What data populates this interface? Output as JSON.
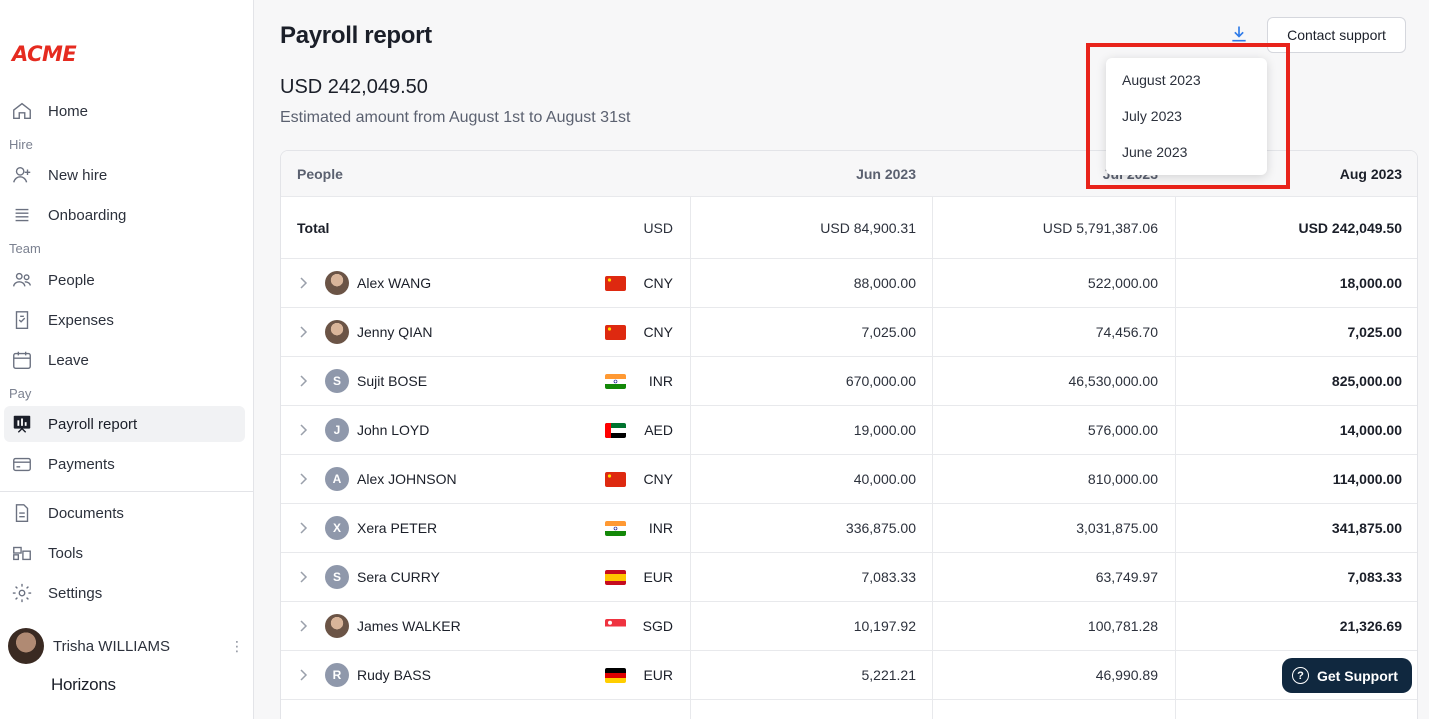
{
  "sidebar": {
    "logo": "ACME",
    "sections": {
      "hire": "Hire",
      "team": "Team",
      "pay": "Pay"
    },
    "items": {
      "home": "Home",
      "new_hire": "New hire",
      "onboarding": "Onboarding",
      "people": "People",
      "expenses": "Expenses",
      "leave": "Leave",
      "payroll_report": "Payroll report",
      "payments": "Payments",
      "documents": "Documents",
      "tools": "Tools",
      "settings": "Settings"
    },
    "user_name": "Trisha WILLIAMS",
    "kebab_glyph": "⋮",
    "brand": "Horizons"
  },
  "header": {
    "title": "Payroll report",
    "amount": "USD 242,049.50",
    "subtitle": "Estimated amount from August 1st to August 31st",
    "contact_button": "Contact support"
  },
  "dropdown": {
    "options": [
      "August 2023",
      "July 2023",
      "June 2023"
    ]
  },
  "table": {
    "headers": {
      "people": "People",
      "col1": "Jun 2023",
      "col2": "Jul 2023",
      "col3": "Aug 2023"
    },
    "total": {
      "label": "Total",
      "currency": "USD",
      "col1": "USD 84,900.31",
      "col2": "USD 5,791,387.06",
      "col3": "USD 242,049.50"
    },
    "rows": [
      {
        "initial": "",
        "name": "Alex WANG",
        "currency": "CNY",
        "flag": "cn",
        "col1": "88,000.00",
        "col2": "522,000.00",
        "col3": "18,000.00"
      },
      {
        "initial": "",
        "name": "Jenny QIAN",
        "currency": "CNY",
        "flag": "cn",
        "col1": "7,025.00",
        "col2": "74,456.70",
        "col3": "7,025.00"
      },
      {
        "initial": "S",
        "name": "Sujit BOSE",
        "currency": "INR",
        "flag": "in",
        "col1": "670,000.00",
        "col2": "46,530,000.00",
        "col3": "825,000.00"
      },
      {
        "initial": "J",
        "name": "John LOYD",
        "currency": "AED",
        "flag": "ae",
        "col1": "19,000.00",
        "col2": "576,000.00",
        "col3": "14,000.00"
      },
      {
        "initial": "A",
        "name": "Alex JOHNSON",
        "currency": "CNY",
        "flag": "cn",
        "col1": "40,000.00",
        "col2": "810,000.00",
        "col3": "114,000.00"
      },
      {
        "initial": "X",
        "name": "Xera PETER",
        "currency": "INR",
        "flag": "in",
        "col1": "336,875.00",
        "col2": "3,031,875.00",
        "col3": "341,875.00"
      },
      {
        "initial": "S",
        "name": "Sera CURRY",
        "currency": "EUR",
        "flag": "es",
        "col1": "7,083.33",
        "col2": "63,749.97",
        "col3": "7,083.33"
      },
      {
        "initial": "",
        "name": "James WALKER",
        "currency": "SGD",
        "flag": "sg",
        "col1": "10,197.92",
        "col2": "100,781.28",
        "col3": "21,326.69"
      },
      {
        "initial": "R",
        "name": "Rudy BASS",
        "currency": "EUR",
        "flag": "de",
        "col1": "5,221.21",
        "col2": "46,990.89",
        "col3": ""
      }
    ]
  },
  "support_button": {
    "label": "Get Support",
    "icon_glyph": "?"
  },
  "colors": {
    "accent_red": "#e8231b",
    "logo_red": "#e52b20",
    "support_bg": "#10283f",
    "download_blue": "#2f7be8"
  }
}
